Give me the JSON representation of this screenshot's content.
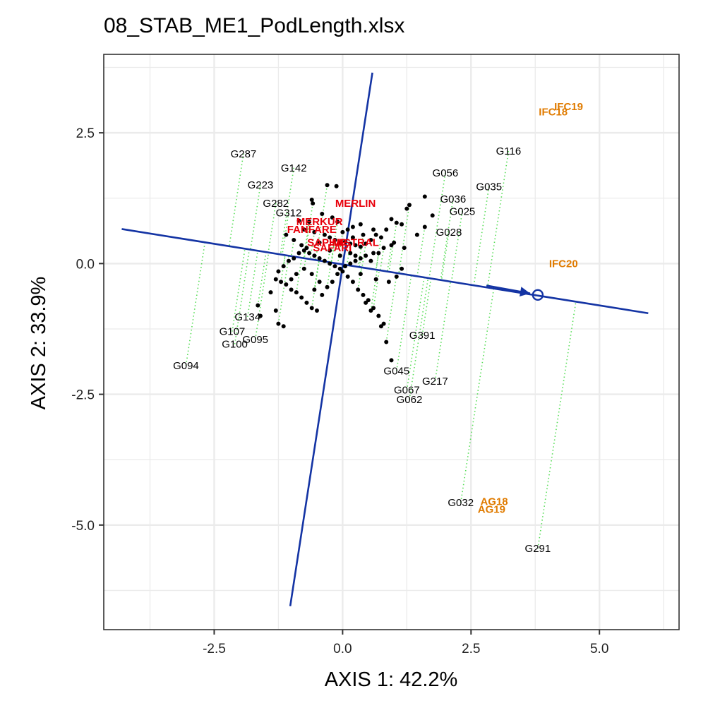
{
  "chart_data": {
    "type": "scatter",
    "title": "08_STAB_ME1_PodLength.xlsx",
    "xlabel": "AXIS 1: 42.2%",
    "ylabel": "AXIS 2: 33.9%",
    "xlim": [
      -4.65,
      6.55
    ],
    "ylim": [
      -7.0,
      4.0
    ],
    "xticks": [
      -2.5,
      0.0,
      2.5,
      5.0
    ],
    "xtick_labels": [
      "-2.5",
      "0.0",
      "2.5",
      "5.0"
    ],
    "yticks": [
      -5.0,
      -2.5,
      0.0,
      2.5
    ],
    "ytick_labels": [
      "-5.0",
      "-2.5",
      "0.0",
      "2.5"
    ],
    "grid": true,
    "colors": {
      "points": "#000000",
      "axis_lines": "#1434A4",
      "projection": "#55DD55",
      "environment": "#E07B00",
      "check": "#E8000B",
      "panel_border": "#333333",
      "grid": "#EBEBEB"
    },
    "average_environment_axis": {
      "ax_start": [
        -4.3,
        0.66
      ],
      "ax_end": [
        5.95,
        -0.95
      ],
      "perp_start": [
        -1.02,
        -6.55
      ],
      "perp_end": [
        0.58,
        3.65
      ],
      "arrow_from": [
        2.8,
        -0.42
      ],
      "arrow_to": [
        3.65,
        -0.57
      ],
      "aec_point": [
        3.8,
        -0.6
      ]
    },
    "environments": [
      {
        "label": "IFC19",
        "x": 4.4,
        "y": 3.0
      },
      {
        "label": "IFC18",
        "x": 4.1,
        "y": 2.9
      },
      {
        "label": "IFC20",
        "x": 4.3,
        "y": 0.0
      },
      {
        "label": "AG18",
        "x": 2.95,
        "y": -4.55
      },
      {
        "label": "AG19",
        "x": 2.9,
        "y": -4.7
      }
    ],
    "check_varieties": [
      {
        "label": "MERLIN",
        "x": 0.25,
        "y": 1.15
      },
      {
        "label": "MERKUR",
        "x": -0.45,
        "y": 0.8
      },
      {
        "label": "FANFARE",
        "x": -0.6,
        "y": 0.65
      },
      {
        "label": "MISTRAL",
        "x": 0.25,
        "y": 0.4
      },
      {
        "label": "SAFARI",
        "x": -0.2,
        "y": 0.3
      },
      {
        "label": "SAPHIR",
        "x": -0.3,
        "y": 0.4
      }
    ],
    "genotype_labels": [
      {
        "label": "G287",
        "x": -1.93,
        "y": 2.1
      },
      {
        "label": "G142",
        "x": -0.95,
        "y": 1.83
      },
      {
        "label": "G223",
        "x": -1.6,
        "y": 1.5
      },
      {
        "label": "G282",
        "x": -1.3,
        "y": 1.15
      },
      {
        "label": "G312",
        "x": -1.05,
        "y": 0.97
      },
      {
        "label": "G116",
        "x": 3.23,
        "y": 2.15
      },
      {
        "label": "G056",
        "x": 2.0,
        "y": 1.73
      },
      {
        "label": "G035",
        "x": 2.85,
        "y": 1.47
      },
      {
        "label": "G036",
        "x": 2.15,
        "y": 1.23
      },
      {
        "label": "G025",
        "x": 2.33,
        "y": 1.0
      },
      {
        "label": "G028",
        "x": 2.07,
        "y": 0.6
      },
      {
        "label": "G134",
        "x": -1.85,
        "y": -1.02
      },
      {
        "label": "G107",
        "x": -2.15,
        "y": -1.3
      },
      {
        "label": "G095",
        "x": -1.7,
        "y": -1.45
      },
      {
        "label": "G100",
        "x": -2.1,
        "y": -1.54
      },
      {
        "label": "G094",
        "x": -3.05,
        "y": -1.95
      },
      {
        "label": "G391",
        "x": 1.55,
        "y": -1.37
      },
      {
        "label": "G045",
        "x": 1.05,
        "y": -2.05
      },
      {
        "label": "G217",
        "x": 1.8,
        "y": -2.25
      },
      {
        "label": "G067",
        "x": 1.25,
        "y": -2.42
      },
      {
        "label": "G062",
        "x": 1.3,
        "y": -2.6
      },
      {
        "label": "G032",
        "x": 2.3,
        "y": -4.57
      },
      {
        "label": "G291",
        "x": 3.8,
        "y": -5.45
      }
    ],
    "genotype_points": [
      [
        -0.3,
        1.5
      ],
      [
        -0.12,
        1.48
      ],
      [
        -0.6,
        1.22
      ],
      [
        -0.58,
        1.15
      ],
      [
        -0.4,
        0.95
      ],
      [
        -0.2,
        0.88
      ],
      [
        -0.65,
        0.8
      ],
      [
        -0.85,
        0.82
      ],
      [
        -0.75,
        0.65
      ],
      [
        -0.55,
        0.6
      ],
      [
        -0.35,
        0.55
      ],
      [
        -0.25,
        0.5
      ],
      [
        -0.15,
        0.45
      ],
      [
        -0.05,
        0.4
      ],
      [
        0.05,
        0.42
      ],
      [
        0.15,
        0.38
      ],
      [
        0.25,
        0.35
      ],
      [
        0.35,
        0.32
      ],
      [
        0.45,
        0.38
      ],
      [
        0.55,
        0.45
      ],
      [
        0.65,
        0.55
      ],
      [
        0.75,
        0.5
      ],
      [
        0.85,
        0.65
      ],
      [
        0.95,
        0.85
      ],
      [
        1.05,
        0.78
      ],
      [
        1.15,
        0.75
      ],
      [
        1.25,
        1.05
      ],
      [
        1.3,
        1.12
      ],
      [
        1.6,
        1.28
      ],
      [
        1.75,
        0.92
      ],
      [
        1.6,
        0.7
      ],
      [
        1.45,
        0.55
      ],
      [
        1.0,
        0.4
      ],
      [
        0.8,
        0.3
      ],
      [
        0.6,
        0.2
      ],
      [
        0.45,
        0.15
      ],
      [
        0.35,
        0.1
      ],
      [
        0.25,
        0.05
      ],
      [
        0.15,
        0.0
      ],
      [
        0.05,
        -0.05
      ],
      [
        -0.05,
        -0.1
      ],
      [
        -0.15,
        -0.05
      ],
      [
        -0.25,
        0.0
      ],
      [
        -0.35,
        0.05
      ],
      [
        -0.45,
        0.1
      ],
      [
        -0.55,
        0.15
      ],
      [
        -0.65,
        0.2
      ],
      [
        -0.75,
        0.25
      ],
      [
        -0.85,
        0.2
      ],
      [
        -0.95,
        0.1
      ],
      [
        -1.05,
        0.05
      ],
      [
        -1.15,
        -0.05
      ],
      [
        -1.25,
        -0.15
      ],
      [
        -1.3,
        -0.3
      ],
      [
        -1.2,
        -0.35
      ],
      [
        -1.1,
        -0.4
      ],
      [
        -1.0,
        -0.5
      ],
      [
        -0.9,
        -0.55
      ],
      [
        -0.8,
        -0.65
      ],
      [
        -0.7,
        -0.75
      ],
      [
        -0.6,
        -0.85
      ],
      [
        -0.5,
        -0.9
      ],
      [
        -0.4,
        -0.6
      ],
      [
        -0.3,
        -0.45
      ],
      [
        -0.2,
        -0.35
      ],
      [
        -0.1,
        -0.2
      ],
      [
        0.0,
        -0.15
      ],
      [
        0.1,
        -0.25
      ],
      [
        0.2,
        -0.35
      ],
      [
        0.3,
        -0.5
      ],
      [
        0.4,
        -0.6
      ],
      [
        0.5,
        -0.7
      ],
      [
        0.6,
        -0.85
      ],
      [
        0.7,
        -1.0
      ],
      [
        0.8,
        -1.15
      ],
      [
        0.85,
        -1.5
      ],
      [
        0.95,
        -1.85
      ],
      [
        0.75,
        -1.2
      ],
      [
        0.55,
        -0.9
      ],
      [
        0.45,
        -0.75
      ],
      [
        -1.15,
        -1.2
      ],
      [
        -1.25,
        -1.15
      ],
      [
        -1.3,
        -0.9
      ],
      [
        -1.6,
        -1.0
      ],
      [
        -1.65,
        -0.8
      ],
      [
        -1.4,
        -0.55
      ],
      [
        -1.1,
        0.55
      ],
      [
        -0.95,
        0.45
      ],
      [
        -0.8,
        0.35
      ],
      [
        -0.7,
        0.3
      ],
      [
        0.0,
        0.6
      ],
      [
        0.1,
        0.65
      ],
      [
        0.2,
        0.7
      ],
      [
        -0.1,
        0.8
      ],
      [
        0.35,
        0.75
      ],
      [
        0.6,
        0.65
      ],
      [
        0.4,
        0.55
      ],
      [
        0.15,
        0.2
      ],
      [
        -0.05,
        0.15
      ],
      [
        0.95,
        0.35
      ],
      [
        1.2,
        0.3
      ],
      [
        1.15,
        -0.1
      ],
      [
        1.05,
        -0.25
      ],
      [
        0.9,
        -0.35
      ],
      [
        0.65,
        -0.3
      ],
      [
        0.35,
        -0.2
      ],
      [
        -0.45,
        -0.35
      ],
      [
        -0.6,
        -0.2
      ],
      [
        -0.75,
        -0.1
      ],
      [
        -0.9,
        -0.2
      ],
      [
        -1.0,
        -0.3
      ],
      [
        -0.55,
        -0.5
      ],
      [
        0.25,
        0.15
      ],
      [
        0.55,
        0.05
      ],
      [
        -0.25,
        0.25
      ],
      [
        0.2,
        0.5
      ],
      [
        -0.45,
        0.4
      ],
      [
        0.7,
        0.2
      ]
    ]
  }
}
